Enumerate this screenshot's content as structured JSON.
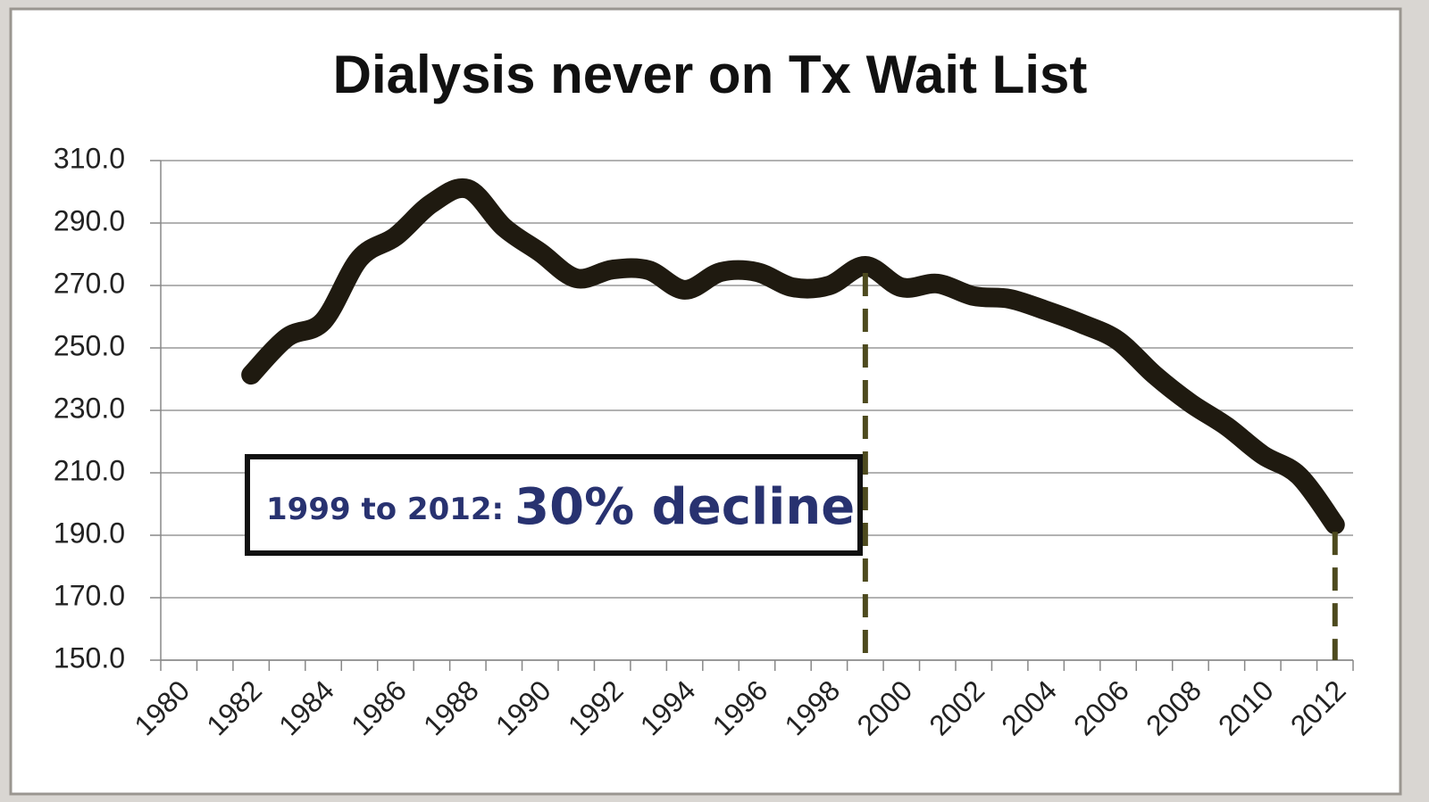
{
  "chart_data": {
    "type": "line",
    "title": "Dialysis never on Tx Wait List",
    "categories": [
      "1980",
      null,
      "1982",
      null,
      "1984",
      null,
      "1986",
      null,
      "1988",
      null,
      "1990",
      null,
      "1992",
      null,
      "1994",
      null,
      "1996",
      null,
      "1998",
      null,
      "2000",
      null,
      "2002",
      null,
      "2004",
      null,
      "2006",
      null,
      "2008",
      null,
      "2010",
      null,
      "2012"
    ],
    "series": [
      {
        "name": "Dialysis never on Tx Wait List",
        "color": "#1f1a10",
        "values": [
          null,
          null,
          241.4,
          253.4,
          258.6,
          278.6,
          285.7,
          296.3,
          300.9,
          288.6,
          280.6,
          272.3,
          275.1,
          274.9,
          268.6,
          274.3,
          274.3,
          269.4,
          270,
          276.3,
          269.4,
          270.6,
          266.6,
          265.7,
          262,
          257.7,
          252.3,
          241.4,
          232.3,
          224.9,
          215.7,
          209.1,
          193.4
        ]
      }
    ],
    "ylim": [
      150,
      310
    ],
    "yticks": [
      {
        "value": 150,
        "label": "150.0"
      },
      {
        "value": 170,
        "label": "170.0"
      },
      {
        "value": 190,
        "label": "190.0"
      },
      {
        "value": 210,
        "label": "210.0"
      },
      {
        "value": 230,
        "label": "230.0"
      },
      {
        "value": 250,
        "label": "250.0"
      },
      {
        "value": 270,
        "label": "270.0"
      },
      {
        "value": 290,
        "label": "290.0"
      },
      {
        "value": 310,
        "label": "310.0"
      }
    ],
    "grid": true,
    "annotation": {
      "prefix": "1999 to 2012:",
      "text": "30% decline",
      "color": "#283270"
    },
    "marker_color": "#4d4a1e"
  }
}
